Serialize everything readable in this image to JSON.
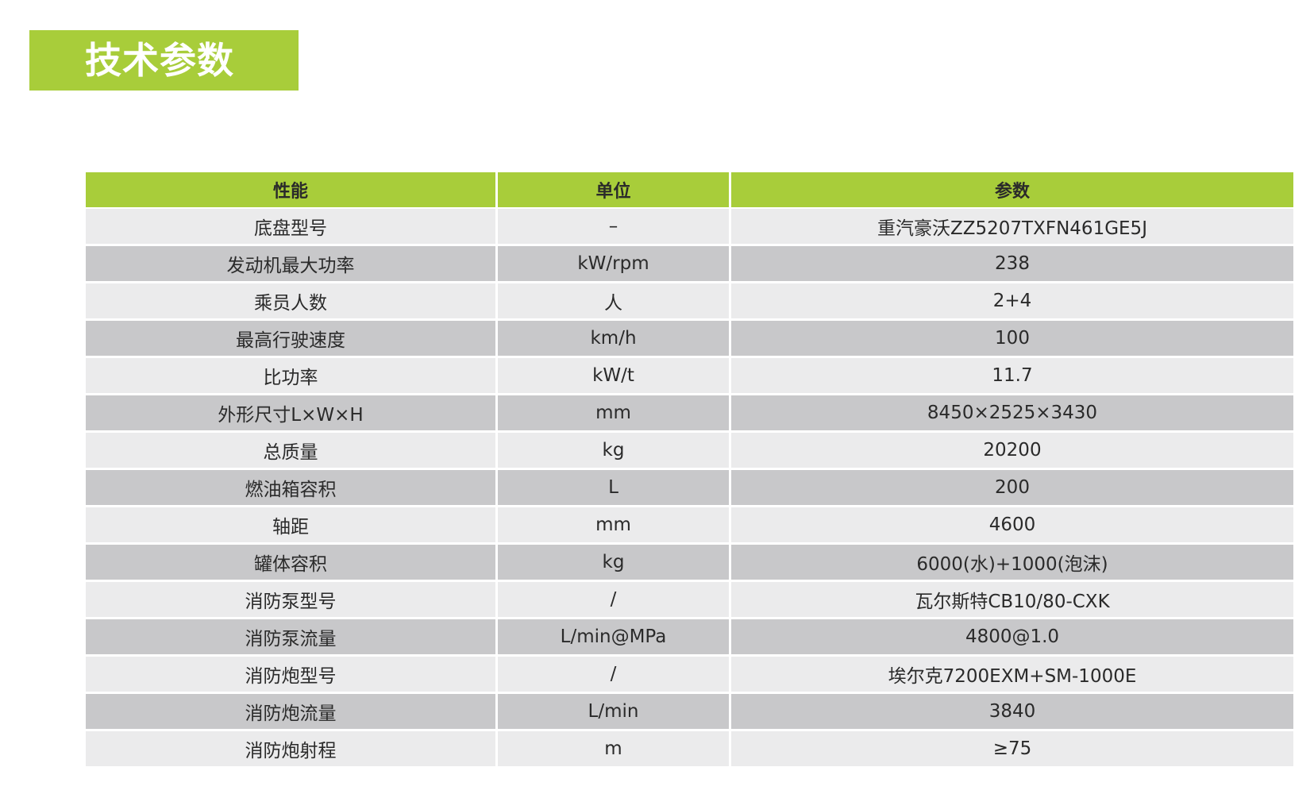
{
  "title": "技术参数",
  "colors": {
    "accent": "#a8cd3a",
    "row_light": "#ebebec",
    "row_dark": "#c8c8ca"
  },
  "table": {
    "headers": [
      "性能",
      "单位",
      "参数"
    ],
    "rows": [
      [
        "底盘型号",
        "–",
        "重汽豪沃ZZ5207TXFN461GE5J"
      ],
      [
        "发动机最大功率",
        "kW/rpm",
        "238"
      ],
      [
        "乘员人数",
        "人",
        "2+4"
      ],
      [
        "最高行驶速度",
        "km/h",
        "100"
      ],
      [
        "比功率",
        "kW/t",
        "11.7"
      ],
      [
        "外形尺寸L×W×H",
        "mm",
        "8450×2525×3430"
      ],
      [
        "总质量",
        "kg",
        "20200"
      ],
      [
        "燃油箱容积",
        "L",
        "200"
      ],
      [
        "轴距",
        "mm",
        "4600"
      ],
      [
        "罐体容积",
        "kg",
        "6000(水)+1000(泡沫)"
      ],
      [
        "消防泵型号",
        "/",
        "瓦尔斯特CB10/80-CXK"
      ],
      [
        "消防泵流量",
        "L/min@MPa",
        "4800@1.0"
      ],
      [
        "消防炮型号",
        "/",
        "埃尔克7200EXM+SM-1000E"
      ],
      [
        "消防炮流量",
        "L/min",
        "3840"
      ],
      [
        "消防炮射程",
        "m",
        "≥75"
      ]
    ]
  }
}
